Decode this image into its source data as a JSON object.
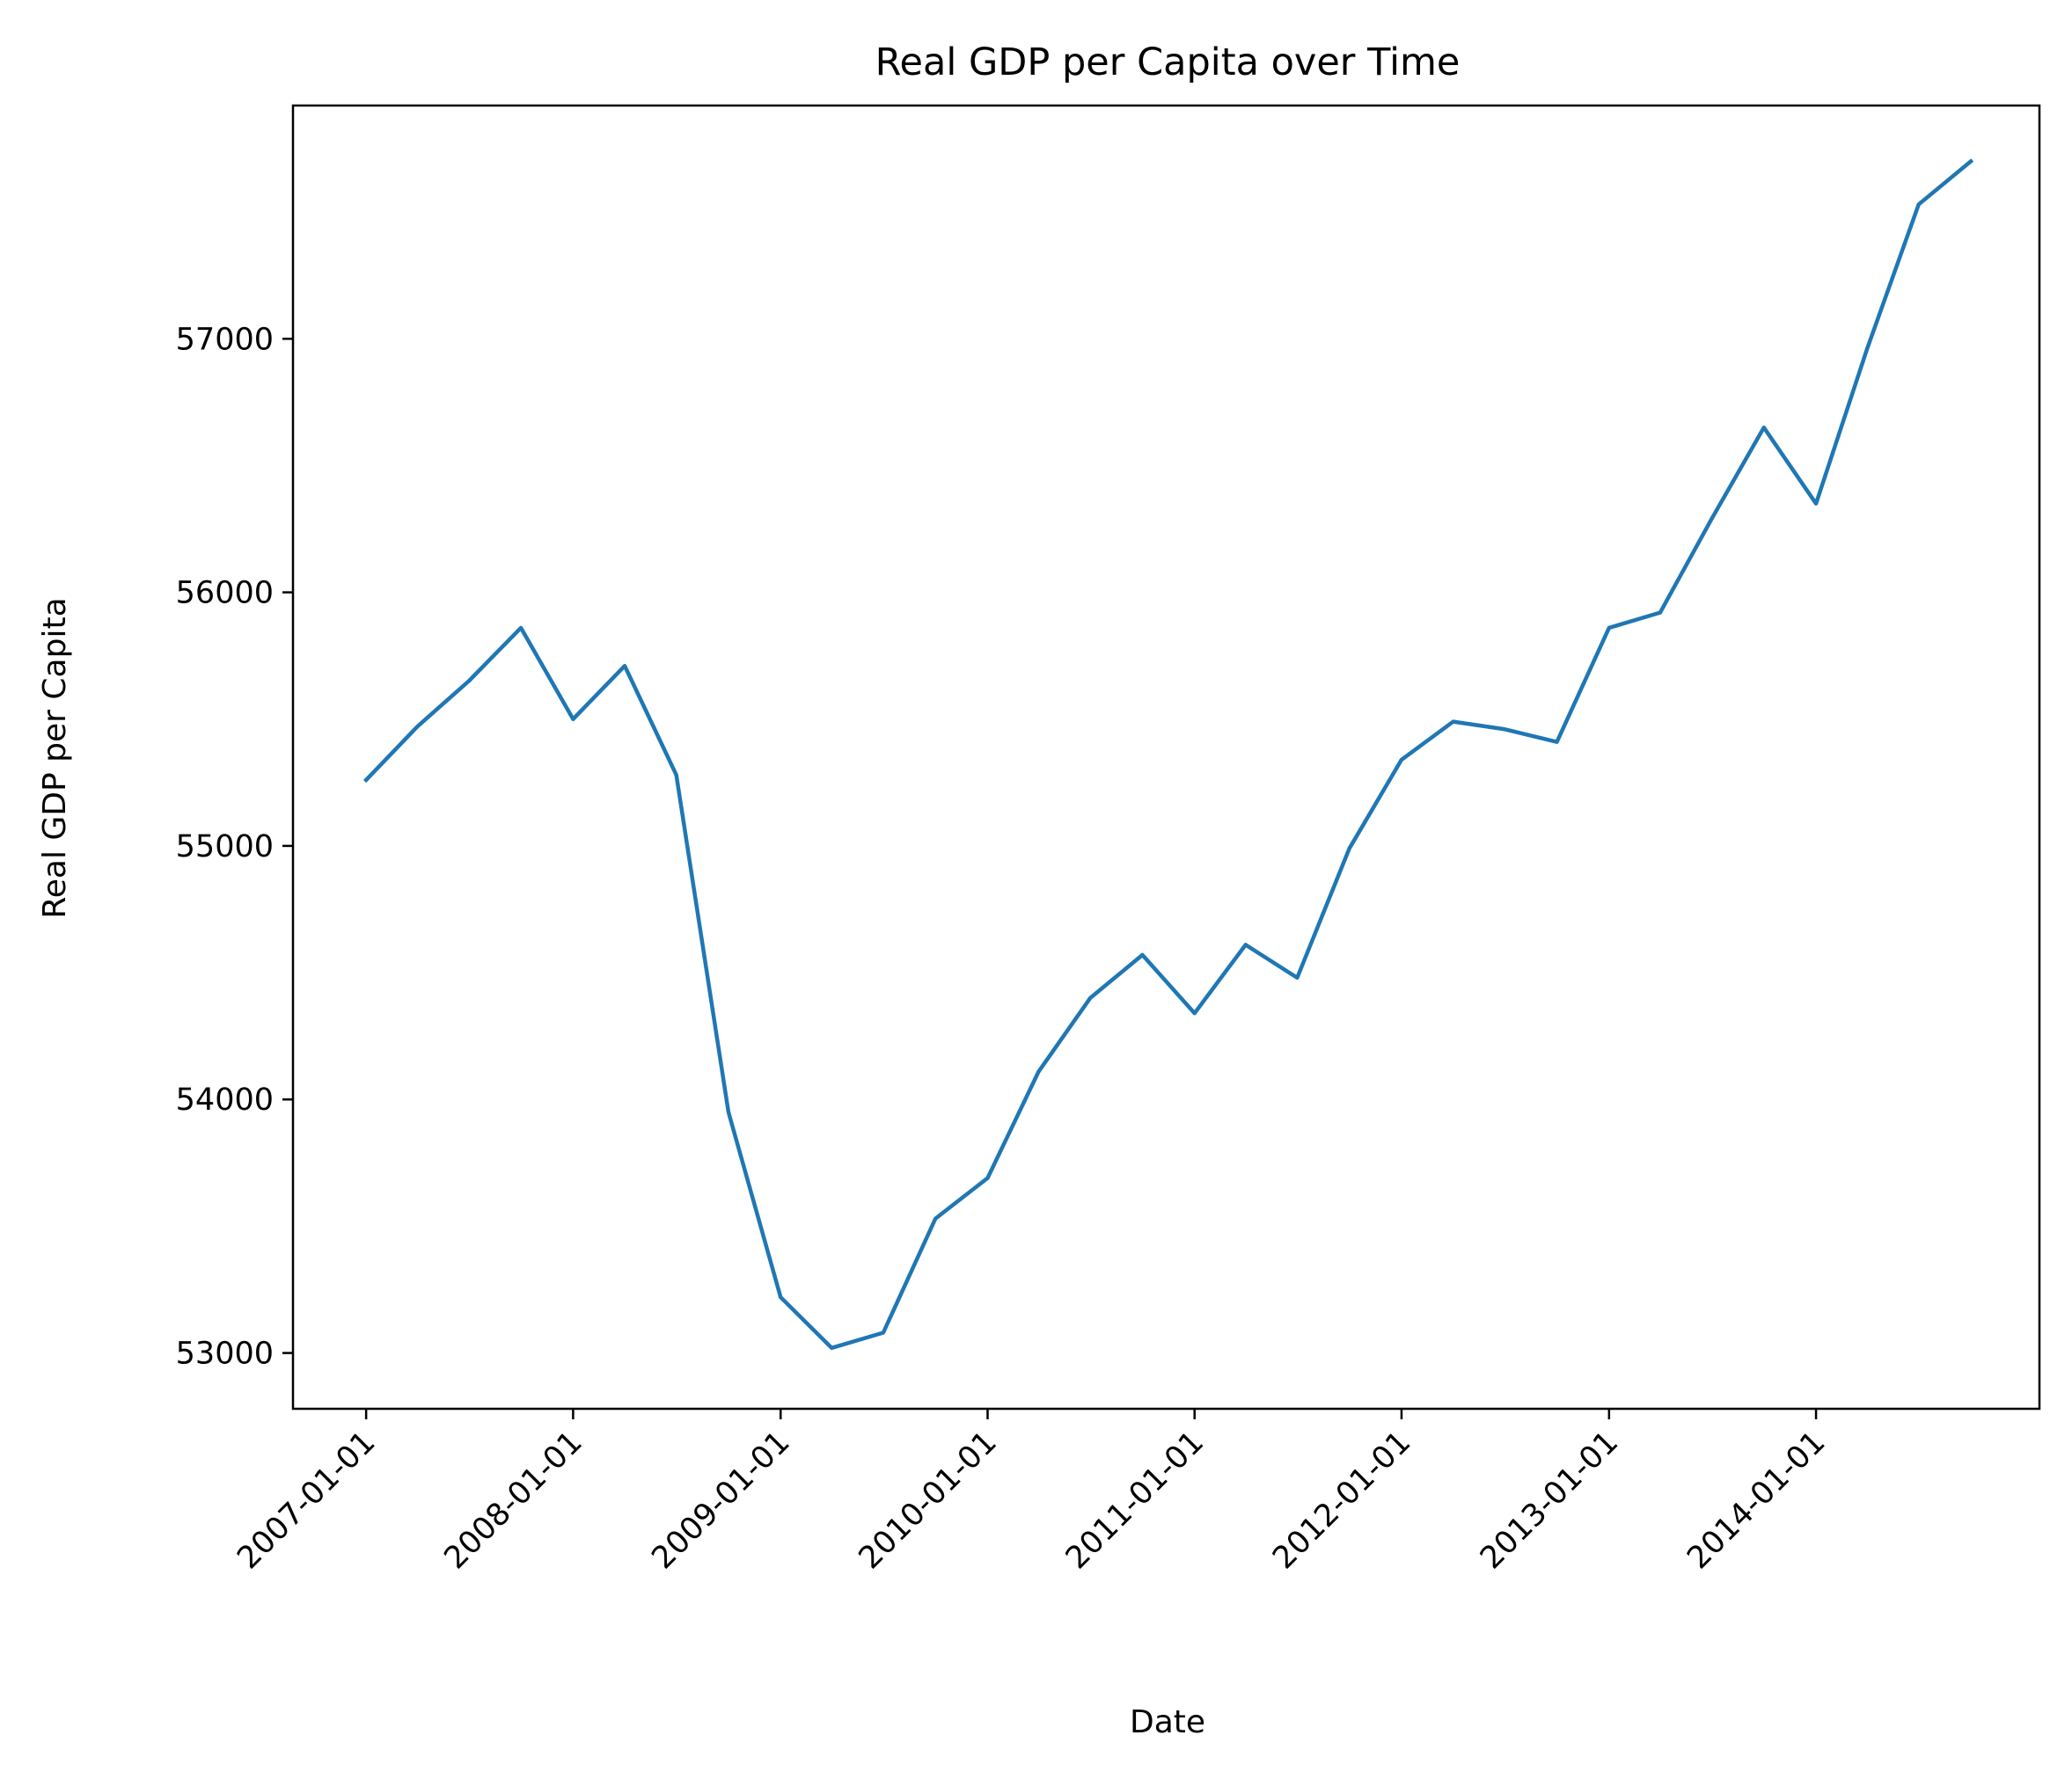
{
  "chart_data": {
    "type": "line",
    "title": "Real GDP per Capita over Time",
    "xlabel": "Date",
    "ylabel": "Real GDP per Capita",
    "grid": false,
    "legend": "none",
    "x_tick_labels": [
      "2007-01-01",
      "2008-01-01",
      "2009-01-01",
      "2010-01-01",
      "2011-01-01",
      "2012-01-01",
      "2013-01-01",
      "2014-01-01"
    ],
    "y_ticks": [
      53000,
      54000,
      55000,
      56000,
      57000
    ],
    "ylim": [
      52780,
      57920
    ],
    "xlim": [
      "2006-08-25",
      "2015-01-30"
    ],
    "series": [
      {
        "color": "#1f77b4",
        "x": [
          "2007-01-01",
          "2007-04-01",
          "2007-07-01",
          "2007-10-01",
          "2008-01-01",
          "2008-04-01",
          "2008-07-01",
          "2008-10-01",
          "2009-01-01",
          "2009-04-01",
          "2009-07-01",
          "2009-10-01",
          "2010-01-01",
          "2010-04-01",
          "2010-07-01",
          "2010-10-01",
          "2011-01-01",
          "2011-04-01",
          "2011-07-01",
          "2011-10-01",
          "2012-01-01",
          "2012-04-01",
          "2012-07-01",
          "2012-10-01",
          "2013-01-01",
          "2013-04-01",
          "2013-07-01",
          "2013-10-01",
          "2014-01-01",
          "2014-04-01",
          "2014-07-01",
          "2014-10-01"
        ],
        "values": [
          55260,
          55470,
          55650,
          55860,
          55500,
          55710,
          55280,
          53950,
          53220,
          53020,
          53080,
          53530,
          53690,
          54110,
          54400,
          54570,
          54340,
          54610,
          54480,
          54990,
          55340,
          55490,
          55460,
          55410,
          55860,
          55920,
          56290,
          56650,
          56350,
          56960,
          57530,
          57700
        ]
      }
    ]
  }
}
